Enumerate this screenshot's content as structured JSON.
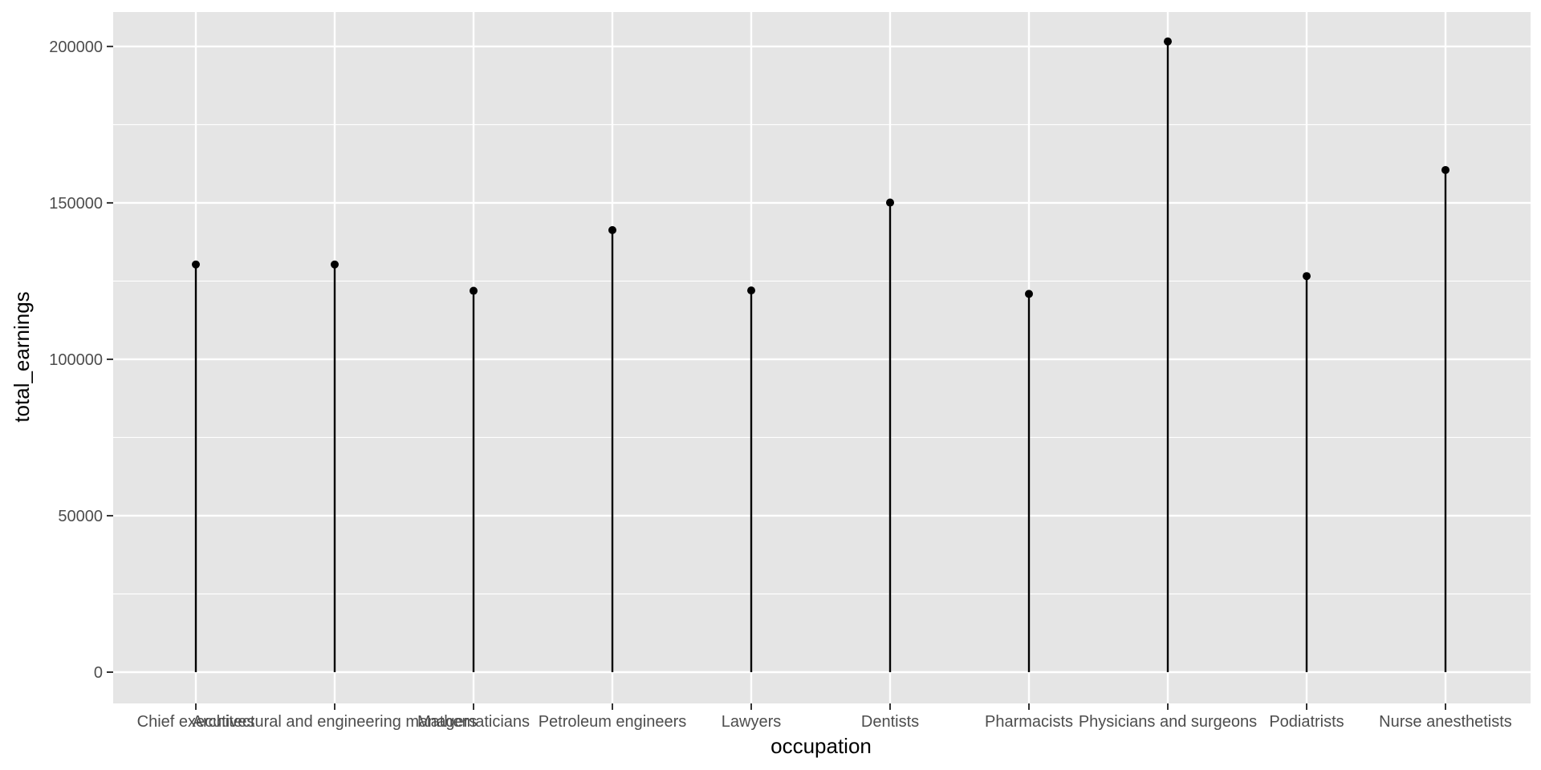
{
  "chart_data": {
    "type": "lollipop",
    "title": "",
    "xlabel": "occupation",
    "ylabel": "total_earnings",
    "categories": [
      "Chief executives",
      "Architectural and engineering managers",
      "Mathematicians",
      "Petroleum engineers",
      "Lawyers",
      "Dentists",
      "Pharmacists",
      "Physicians and surgeons",
      "Podiatrists",
      "Nurse anesthetists"
    ],
    "values": [
      130300,
      130300,
      121900,
      141300,
      122000,
      150100,
      120900,
      201600,
      126600,
      160500
    ],
    "ylim": [
      -10000,
      211000
    ],
    "yticks": [
      0,
      50000,
      100000,
      150000,
      200000
    ],
    "ytick_labels": [
      "0",
      "50000",
      "100000",
      "150000",
      "200000"
    ],
    "grid": true,
    "legend": "none",
    "colors": {
      "panel": "#E5E5E5",
      "grid": "#FFFFFF",
      "mark": "#000000",
      "tick_text": "#4D4D4D",
      "tick_mark": "#333333"
    }
  }
}
